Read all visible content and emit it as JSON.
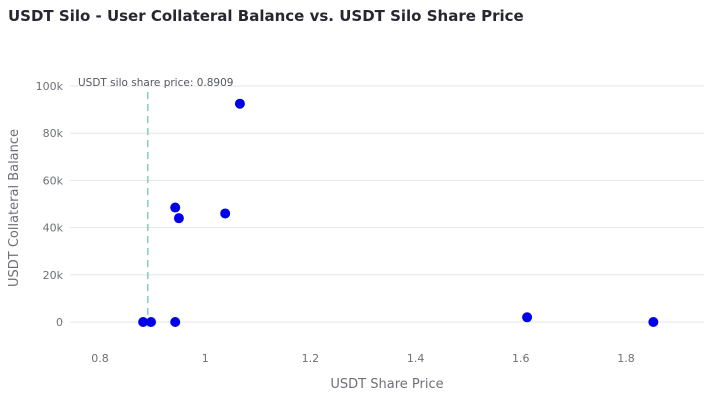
{
  "page": {
    "title": "USDT Silo - User Collateral Balance vs. USDT Silo Share Price"
  },
  "chart_data": {
    "type": "scatter",
    "title": "USDT Silo - User Collateral Balance vs. USDT Silo Share Price",
    "xlabel": "USDT Share Price",
    "ylabel": "USDT Collateral Balance",
    "xlim": [
      0.75,
      1.92
    ],
    "ylim": [
      -3000,
      104000
    ],
    "x_ticks": [
      0.8,
      1,
      1.2,
      1.4,
      1.6,
      1.8
    ],
    "x_tick_labels": [
      "0.8",
      "1",
      "1.2",
      "1.4",
      "1.6",
      "1.8"
    ],
    "y_ticks": [
      0,
      20000,
      40000,
      60000,
      80000,
      100000
    ],
    "y_tick_labels": [
      "0",
      "20k",
      "40k",
      "60k",
      "80k",
      "100k"
    ],
    "grid": true,
    "marker_color": "#0000e6",
    "points": [
      {
        "x": 0.882,
        "y": 0
      },
      {
        "x": 0.897,
        "y": 0
      },
      {
        "x": 0.943,
        "y": 0
      },
      {
        "x": 0.943,
        "y": 48500
      },
      {
        "x": 0.95,
        "y": 44000
      },
      {
        "x": 1.038,
        "y": 46000
      },
      {
        "x": 1.066,
        "y": 92500
      },
      {
        "x": 1.612,
        "y": 2000
      },
      {
        "x": 1.852,
        "y": 0
      }
    ],
    "reference_line": {
      "x": 0.8909,
      "label": "USDT silo share price: 0.8909",
      "color": "#7fd1b9",
      "style": "dashed"
    }
  }
}
